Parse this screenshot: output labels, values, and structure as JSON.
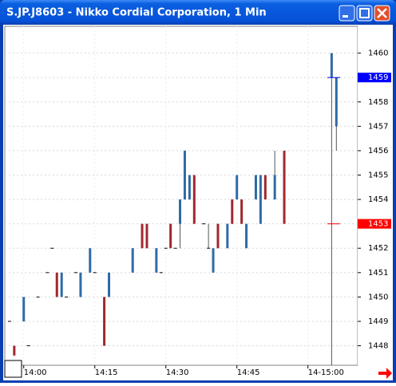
{
  "chart_data": {
    "type": "candlestick",
    "title": "S.JP.J8603 - Nikko Cordial Corporation, 1 Min",
    "open": [
      1449,
      1448,
      null,
      1449,
      1448,
      null,
      1450,
      null,
      1451,
      1452,
      1451,
      1450,
      1450,
      null,
      1451,
      1450,
      null,
      1451,
      1451,
      null,
      1450,
      1450,
      null,
      null,
      null,
      null,
      1451,
      null,
      1453,
      1453,
      null,
      1451,
      1451,
      1452,
      1453,
      1452,
      1453,
      1454,
      1454,
      1455,
      null,
      1453,
      1452,
      1451,
      1453,
      null,
      1452,
      1454,
      1454,
      1454,
      1452,
      null,
      1454,
      1453,
      1455,
      null,
      1454,
      null,
      1456,
      null,
      null,
      null,
      null,
      null,
      null,
      null,
      null,
      null,
      1459,
      1457
    ],
    "high": [
      1449,
      1448,
      null,
      1450,
      1448,
      null,
      1450,
      null,
      1451,
      1452,
      1451,
      1451,
      1450,
      null,
      1451,
      1451,
      null,
      1452,
      1451,
      null,
      1450,
      1451,
      null,
      null,
      null,
      null,
      1452,
      null,
      1453,
      1453,
      null,
      1452,
      1451,
      1452,
      1453,
      1452,
      1454,
      1456,
      1455,
      1455,
      null,
      1453,
      1453,
      1452,
      1453,
      null,
      1453,
      1454,
      1455,
      1454,
      1453,
      null,
      1455,
      1455,
      1455,
      null,
      1456,
      null,
      1456,
      null,
      null,
      null,
      null,
      null,
      null,
      null,
      null,
      null,
      1460,
      1459
    ],
    "low": [
      1449,
      1447.6,
      null,
      1449,
      1448,
      null,
      1450,
      null,
      1451,
      1452,
      1450,
      1450,
      1450,
      null,
      1451,
      1450,
      null,
      1451,
      1451,
      null,
      1448,
      1450,
      null,
      null,
      null,
      null,
      1451,
      null,
      1452,
      1452,
      null,
      1451,
      1451,
      1452,
      1452,
      1452,
      1452,
      1454,
      1454,
      1453,
      null,
      1453,
      1452,
      1451,
      1452,
      null,
      1452,
      1453,
      1454,
      1453,
      1452,
      null,
      1454,
      1453,
      1454,
      null,
      1454,
      null,
      1453,
      null,
      null,
      null,
      null,
      null,
      null,
      null,
      null,
      null,
      1447,
      1456
    ],
    "close": [
      1449,
      1447.6,
      null,
      1450,
      1448,
      null,
      1450,
      null,
      1451,
      1452,
      1450,
      1451,
      1450,
      null,
      1451,
      1451,
      null,
      1452,
      1451,
      null,
      1448,
      1451,
      null,
      null,
      null,
      null,
      1452,
      null,
      1452,
      1452,
      null,
      1452,
      1451,
      1452,
      1452,
      1452,
      1454,
      1456,
      1455,
      1453,
      null,
      1453,
      1452,
      1452,
      1452,
      null,
      1453,
      1453,
      1455,
      1453,
      1453,
      null,
      1455,
      1455,
      1454,
      null,
      1455,
      null,
      1453,
      null,
      null,
      null,
      null,
      null,
      null,
      null,
      null,
      null,
      1460,
      1459
    ],
    "up_color": "#2f6aa6",
    "down_color": "#a0282c",
    "flat_color": "#000000",
    "xlim": [
      -1,
      73.5
    ],
    "xticks": [
      {
        "value": 3,
        "label": "14:00"
      },
      {
        "value": 18,
        "label": "14:15"
      },
      {
        "value": 33,
        "label": "14:30"
      },
      {
        "value": 48,
        "label": "14:45"
      },
      {
        "value": 63,
        "label": "14-15:00"
      }
    ],
    "ylim": [
      1447.2,
      1461.1
    ],
    "yticks": [
      1448,
      1449,
      1450,
      1451,
      1452,
      1453,
      1454,
      1455,
      1456,
      1457,
      1458,
      1459,
      1460
    ],
    "grid": true,
    "price_markers": [
      {
        "value": 1459,
        "color": "#0000ff"
      },
      {
        "value": 1453,
        "color": "#ff0000"
      }
    ]
  }
}
